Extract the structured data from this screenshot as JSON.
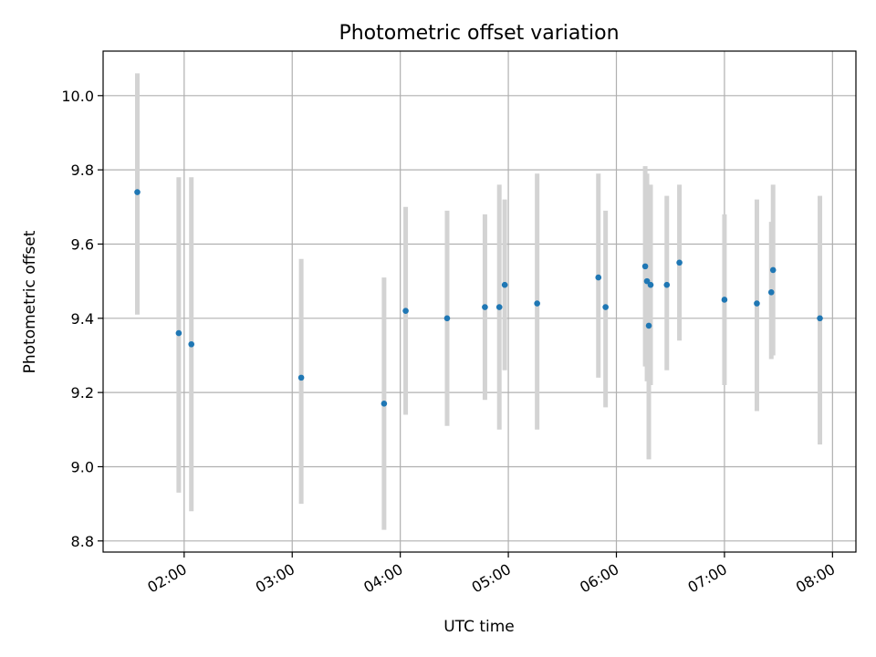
{
  "chart_data": {
    "type": "scatter",
    "title": "Photometric offset variation",
    "xlabel": "UTC time",
    "ylabel": "Photometric offset",
    "x_tick_labels": [
      "02:00",
      "03:00",
      "04:00",
      "05:00",
      "06:00",
      "07:00",
      "08:00"
    ],
    "y_tick_labels": [
      "8.8",
      "9.0",
      "9.2",
      "9.4",
      "9.6",
      "9.8",
      "10.0"
    ],
    "grid": true,
    "colors": {
      "point": "#1f77b4",
      "errorbar": "#d3d3d3",
      "grid": "#b0b0b0"
    },
    "xlim": [
      "01:15",
      "08:13"
    ],
    "ylim": [
      8.77,
      10.12
    ],
    "points": [
      {
        "x": "01:34",
        "y": 9.74,
        "ylow": 9.41,
        "yhigh": 10.06
      },
      {
        "x": "01:57",
        "y": 9.36,
        "ylow": 8.93,
        "yhigh": 9.78
      },
      {
        "x": "02:04",
        "y": 9.33,
        "ylow": 8.88,
        "yhigh": 9.78
      },
      {
        "x": "03:05",
        "y": 9.24,
        "ylow": 8.9,
        "yhigh": 9.56
      },
      {
        "x": "03:51",
        "y": 9.17,
        "ylow": 8.83,
        "yhigh": 9.51
      },
      {
        "x": "04:03",
        "y": 9.42,
        "ylow": 9.14,
        "yhigh": 9.7
      },
      {
        "x": "04:26",
        "y": 9.4,
        "ylow": 9.11,
        "yhigh": 9.69
      },
      {
        "x": "04:47",
        "y": 9.43,
        "ylow": 9.18,
        "yhigh": 9.68
      },
      {
        "x": "04:55",
        "y": 9.43,
        "ylow": 9.1,
        "yhigh": 9.76
      },
      {
        "x": "04:58",
        "y": 9.49,
        "ylow": 9.26,
        "yhigh": 9.72
      },
      {
        "x": "05:16",
        "y": 9.44,
        "ylow": 9.1,
        "yhigh": 9.79
      },
      {
        "x": "05:50",
        "y": 9.51,
        "ylow": 9.24,
        "yhigh": 9.79
      },
      {
        "x": "05:54",
        "y": 9.43,
        "ylow": 9.16,
        "yhigh": 9.69
      },
      {
        "x": "06:16",
        "y": 9.54,
        "ylow": 9.27,
        "yhigh": 9.81
      },
      {
        "x": "06:17",
        "y": 9.5,
        "ylow": 9.23,
        "yhigh": 9.79
      },
      {
        "x": "06:18",
        "y": 9.38,
        "ylow": 9.02,
        "yhigh": 9.73
      },
      {
        "x": "06:19",
        "y": 9.49,
        "ylow": 9.22,
        "yhigh": 9.76
      },
      {
        "x": "06:28",
        "y": 9.49,
        "ylow": 9.26,
        "yhigh": 9.73
      },
      {
        "x": "06:35",
        "y": 9.55,
        "ylow": 9.34,
        "yhigh": 9.76
      },
      {
        "x": "07:00",
        "y": 9.45,
        "ylow": 9.22,
        "yhigh": 9.68
      },
      {
        "x": "07:18",
        "y": 9.44,
        "ylow": 9.15,
        "yhigh": 9.72
      },
      {
        "x": "07:26",
        "y": 9.47,
        "ylow": 9.29,
        "yhigh": 9.66
      },
      {
        "x": "07:27",
        "y": 9.53,
        "ylow": 9.3,
        "yhigh": 9.76
      },
      {
        "x": "07:53",
        "y": 9.4,
        "ylow": 9.06,
        "yhigh": 9.73
      }
    ]
  }
}
